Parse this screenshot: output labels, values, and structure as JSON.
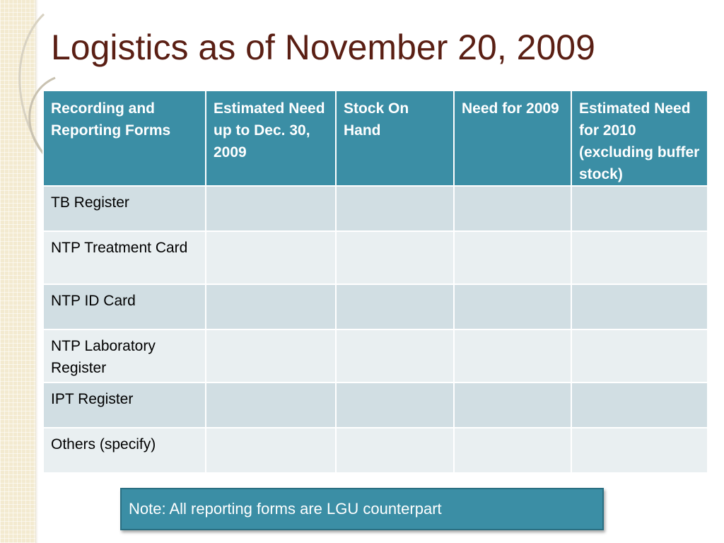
{
  "slide": {
    "title": "Logistics as of November 20, 2009",
    "note": "Note: All reporting forms are LGU counterpart"
  },
  "table": {
    "headers": [
      "Recording and Reporting Forms",
      "Estimated Need  up to Dec. 30, 2009",
      "Stock On Hand",
      "Need for 2009",
      "Estimated Need for 2010 (excluding buffer stock)"
    ],
    "rows": [
      [
        "TB Register",
        "",
        "",
        "",
        ""
      ],
      [
        "NTP Treatment Card",
        "",
        "",
        "",
        ""
      ],
      [
        "NTP ID Card",
        "",
        "",
        "",
        ""
      ],
      [
        "NTP Laboratory Register",
        "",
        "",
        "",
        ""
      ],
      [
        "IPT Register",
        "",
        "",
        "",
        ""
      ],
      [
        "Others (specify)",
        "",
        "",
        "",
        ""
      ]
    ]
  },
  "colors": {
    "title": "#5a1f14",
    "header_bg": "#3b8ea5",
    "row_band_dark": "#d1dee3",
    "row_band_light": "#e9eff1",
    "strip": "#f3ead0"
  }
}
